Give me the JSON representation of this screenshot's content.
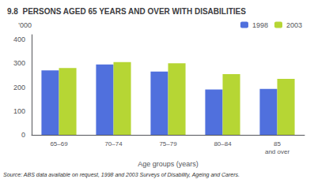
{
  "chart_data": {
    "type": "bar",
    "title": "9.8  PERSONS AGED 65 YEARS AND OVER WITH DISABILITIES",
    "categories": [
      "65–69",
      "70–74",
      "75–79",
      "80–84",
      "85\nand over"
    ],
    "series": [
      {
        "name": "1998",
        "values": [
          270,
          295,
          265,
          190,
          193
        ]
      },
      {
        "name": "2003",
        "values": [
          280,
          305,
          300,
          255,
          235
        ]
      }
    ],
    "ylabel": "'000",
    "xlabel": "Age groups (years)",
    "ylim": [
      0,
      420
    ],
    "yticks": [
      0,
      100,
      200,
      300,
      400
    ],
    "grid": false,
    "legend": "upper right",
    "annotations": [
      "Source: ABS data available on request, 1998 and 2003 Surveys of Disability, Ageing and Carers."
    ]
  }
}
